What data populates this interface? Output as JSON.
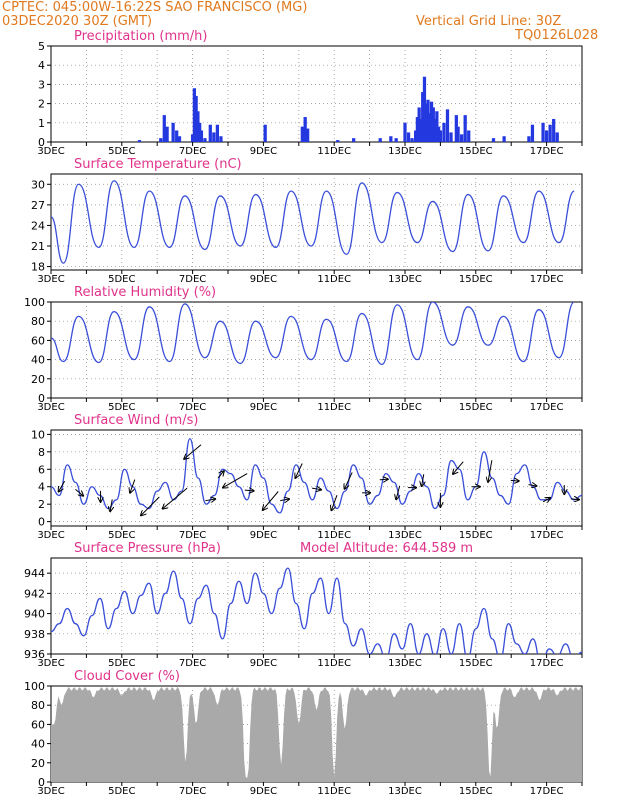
{
  "header": {
    "line1": "CPTEC:   045:00W-16:22S   SAO FRANCISCO (MG)",
    "line2": "03DEC2020 30Z (GMT)",
    "right1": "Vertical Grid Line: 30Z",
    "right2": "TQ0126L028",
    "altitude": "Model Altitude: 644.589 m"
  },
  "colors": {
    "header": "#e07a1f",
    "title": "#e0338a",
    "line": "#3a4fd8",
    "bar": "#2438e0",
    "cloud": "#a9a9a9"
  },
  "chart_data": [
    {
      "type": "bar",
      "title": "Precipitation (mm/h)",
      "x_start_day": 3,
      "x_end_day": 18,
      "xticks": [
        "3DEC",
        "5DEC",
        "7DEC",
        "9DEC",
        "11DEC",
        "13DEC",
        "15DEC",
        "17DEC"
      ],
      "yticks": [
        0,
        1,
        2,
        3,
        4,
        5
      ],
      "ylim": [
        0,
        5
      ],
      "bars": [
        {
          "d": 5.5,
          "v": 0.1
        },
        {
          "d": 6.1,
          "v": 0.2
        },
        {
          "d": 6.2,
          "v": 1.4
        },
        {
          "d": 6.28,
          "v": 0.8
        },
        {
          "d": 6.45,
          "v": 1.0
        },
        {
          "d": 6.55,
          "v": 0.6
        },
        {
          "d": 6.63,
          "v": 0.3
        },
        {
          "d": 7.0,
          "v": 0.4
        },
        {
          "d": 7.05,
          "v": 2.8
        },
        {
          "d": 7.1,
          "v": 2.4
        },
        {
          "d": 7.15,
          "v": 1.6
        },
        {
          "d": 7.2,
          "v": 1.0
        },
        {
          "d": 7.25,
          "v": 0.6
        },
        {
          "d": 7.35,
          "v": 0.2
        },
        {
          "d": 7.5,
          "v": 0.9
        },
        {
          "d": 7.6,
          "v": 0.5
        },
        {
          "d": 7.7,
          "v": 0.9
        },
        {
          "d": 7.8,
          "v": 0.3
        },
        {
          "d": 9.05,
          "v": 0.9
        },
        {
          "d": 10.1,
          "v": 0.8
        },
        {
          "d": 10.18,
          "v": 1.3
        },
        {
          "d": 10.25,
          "v": 0.7
        },
        {
          "d": 11.1,
          "v": 0.1
        },
        {
          "d": 11.55,
          "v": 0.2
        },
        {
          "d": 12.3,
          "v": 0.2
        },
        {
          "d": 12.6,
          "v": 0.3
        },
        {
          "d": 12.75,
          "v": 0.2
        },
        {
          "d": 13.0,
          "v": 1.0
        },
        {
          "d": 13.1,
          "v": 0.5
        },
        {
          "d": 13.2,
          "v": 0.2
        },
        {
          "d": 13.3,
          "v": 0.6
        },
        {
          "d": 13.35,
          "v": 1.3
        },
        {
          "d": 13.4,
          "v": 1.8
        },
        {
          "d": 13.45,
          "v": 1.2
        },
        {
          "d": 13.5,
          "v": 2.6
        },
        {
          "d": 13.55,
          "v": 3.4
        },
        {
          "d": 13.6,
          "v": 2.0
        },
        {
          "d": 13.65,
          "v": 2.2
        },
        {
          "d": 13.7,
          "v": 1.5
        },
        {
          "d": 13.75,
          "v": 2.1
        },
        {
          "d": 13.8,
          "v": 1.8
        },
        {
          "d": 13.85,
          "v": 1.2
        },
        {
          "d": 13.9,
          "v": 1.6
        },
        {
          "d": 13.95,
          "v": 0.8
        },
        {
          "d": 14.0,
          "v": 0.6
        },
        {
          "d": 14.1,
          "v": 1.0
        },
        {
          "d": 14.2,
          "v": 1.7
        },
        {
          "d": 14.3,
          "v": 0.5
        },
        {
          "d": 14.45,
          "v": 1.4
        },
        {
          "d": 14.5,
          "v": 0.8
        },
        {
          "d": 14.6,
          "v": 0.4
        },
        {
          "d": 14.7,
          "v": 1.4
        },
        {
          "d": 14.8,
          "v": 0.6
        },
        {
          "d": 15.5,
          "v": 0.2
        },
        {
          "d": 15.8,
          "v": 0.3
        },
        {
          "d": 16.5,
          "v": 0.3
        },
        {
          "d": 16.6,
          "v": 0.9
        },
        {
          "d": 16.9,
          "v": 1.0
        },
        {
          "d": 17.0,
          "v": 0.6
        },
        {
          "d": 17.1,
          "v": 0.9
        },
        {
          "d": 17.2,
          "v": 1.2
        },
        {
          "d": 17.3,
          "v": 0.5
        }
      ]
    },
    {
      "type": "line",
      "title": "Surface Temperature (nC)",
      "x_start_day": 3,
      "x_end_day": 18,
      "xticks": [
        "3DEC",
        "5DEC",
        "7DEC",
        "9DEC",
        "11DEC",
        "13DEC",
        "15DEC",
        "17DEC"
      ],
      "yticks": [
        18,
        21,
        24,
        27,
        30
      ],
      "ylim": [
        17.5,
        31.5
      ],
      "mins": [
        18.5,
        20.8,
        20.8,
        20.8,
        20.5,
        21.0,
        20.8,
        21.0,
        19.8,
        21.5,
        21.5,
        20.2,
        20.3,
        21.5,
        21.5
      ],
      "maxs": [
        30.0,
        30.5,
        29.0,
        28.3,
        28.3,
        28.5,
        29.0,
        29.0,
        30.2,
        28.8,
        27.5,
        28.5,
        28.3,
        29.0,
        29.0
      ]
    },
    {
      "type": "line",
      "title": "Relative Humidity (%)",
      "x_start_day": 3,
      "x_end_day": 18,
      "xticks": [
        "3DEC",
        "5DEC",
        "7DEC",
        "9DEC",
        "11DEC",
        "13DEC",
        "15DEC",
        "17DEC"
      ],
      "yticks": [
        0,
        20,
        40,
        60,
        80,
        100
      ],
      "ylim": [
        0,
        100
      ],
      "mins": [
        38,
        37,
        40,
        38,
        42,
        36,
        42,
        40,
        38,
        35,
        40,
        55,
        55,
        38,
        42
      ],
      "maxs": [
        85,
        90,
        95,
        98,
        80,
        80,
        85,
        82,
        88,
        97,
        100,
        95,
        85,
        92,
        100
      ]
    },
    {
      "type": "line",
      "title": "Surface Wind (m/s)",
      "x_start_day": 3,
      "x_end_day": 18,
      "xticks": [
        "3DEC",
        "5DEC",
        "7DEC",
        "9DEC",
        "11DEC",
        "13DEC",
        "15DEC",
        "17DEC"
      ],
      "yticks": [
        0,
        2,
        4,
        6,
        8,
        10
      ],
      "ylim": [
        -0.5,
        10.5
      ],
      "values": [
        4.0,
        3.0,
        6.5,
        4.5,
        2.0,
        4.0,
        3.0,
        1.5,
        2.5,
        6.0,
        4.0,
        2.0,
        1.5,
        3.5,
        4.5,
        2.5,
        3.5,
        9.5,
        5.0,
        2.0,
        3.0,
        6.0,
        5.5,
        4.0,
        2.5,
        6.5,
        5.0,
        2.0,
        1.0,
        3.5,
        6.5,
        4.5,
        2.5,
        5.0,
        3.5,
        1.5,
        3.5,
        6.5,
        5.0,
        2.0,
        3.0,
        5.5,
        4.5,
        2.0,
        3.5,
        5.5,
        4.0,
        1.5,
        3.0,
        7.0,
        6.0,
        2.5,
        4.0,
        8.0,
        5.0,
        3.0,
        2.0,
        5.5,
        6.5,
        4.0,
        2.5,
        2.5,
        4.5,
        3.5,
        2.5,
        3.0
      ],
      "arrows": [
        {
          "d": 3.3,
          "dir": 210,
          "len": 12
        },
        {
          "d": 3.8,
          "dir": 130,
          "len": 10
        },
        {
          "d": 4.4,
          "dir": 180,
          "len": 11
        },
        {
          "d": 4.7,
          "dir": 190,
          "len": 12
        },
        {
          "d": 5.3,
          "dir": 200,
          "len": 14
        },
        {
          "d": 5.8,
          "dir": 225,
          "len": 26
        },
        {
          "d": 6.5,
          "dir": 230,
          "len": 32
        },
        {
          "d": 7.0,
          "dir": 230,
          "len": 22
        },
        {
          "d": 7.5,
          "dir": 80,
          "len": 10
        },
        {
          "d": 7.8,
          "dir": 40,
          "len": 9
        },
        {
          "d": 8.2,
          "dir": 240,
          "len": 28
        },
        {
          "d": 8.6,
          "dir": 95,
          "len": 9
        },
        {
          "d": 9.2,
          "dir": 220,
          "len": 24
        },
        {
          "d": 9.6,
          "dir": 80,
          "len": 9
        },
        {
          "d": 10.0,
          "dir": 205,
          "len": 16
        },
        {
          "d": 10.5,
          "dir": 100,
          "len": 9
        },
        {
          "d": 11.0,
          "dir": 200,
          "len": 16
        },
        {
          "d": 11.4,
          "dir": 205,
          "len": 18
        },
        {
          "d": 11.9,
          "dir": 90,
          "len": 8
        },
        {
          "d": 12.4,
          "dir": 85,
          "len": 8
        },
        {
          "d": 12.8,
          "dir": 195,
          "len": 14
        },
        {
          "d": 13.2,
          "dir": 90,
          "len": 8
        },
        {
          "d": 13.5,
          "dir": 190,
          "len": 12
        },
        {
          "d": 14.0,
          "dir": 180,
          "len": 14
        },
        {
          "d": 14.5,
          "dir": 220,
          "len": 16
        },
        {
          "d": 15.0,
          "dir": 90,
          "len": 8
        },
        {
          "d": 15.4,
          "dir": 190,
          "len": 22
        },
        {
          "d": 16.1,
          "dir": 95,
          "len": 8
        },
        {
          "d": 16.6,
          "dir": 100,
          "len": 8
        },
        {
          "d": 17.0,
          "dir": 60,
          "len": 8
        },
        {
          "d": 17.5,
          "dir": 180,
          "len": 9
        },
        {
          "d": 17.8,
          "dir": 95,
          "len": 8
        }
      ]
    },
    {
      "type": "line",
      "title": "Surface Pressure (hPa)",
      "x_start_day": 3,
      "x_end_day": 18,
      "xticks": [
        "3DEC",
        "5DEC",
        "7DEC",
        "9DEC",
        "11DEC",
        "13DEC",
        "15DEC",
        "17DEC"
      ],
      "yticks": [
        936,
        938,
        940,
        942,
        944
      ],
      "ylim": [
        936,
        945.5
      ],
      "values": [
        938.2,
        939.0,
        940.5,
        939.0,
        937.8,
        939.8,
        941.5,
        938.5,
        940.5,
        942.2,
        940.0,
        941.8,
        943.0,
        940.0,
        942.0,
        944.2,
        941.5,
        939.0,
        941.5,
        942.8,
        940.0,
        937.5,
        941.0,
        943.2,
        941.0,
        944.0,
        942.0,
        940.0,
        942.5,
        944.5,
        941.0,
        938.5,
        942.0,
        943.5,
        940.0,
        943.5,
        939.0,
        936.8,
        938.5,
        936.0,
        937.0,
        935.5,
        938.0,
        936.5,
        939.0,
        936.0,
        938.0,
        935.8,
        938.5,
        936.0,
        939.0,
        935.5,
        938.5,
        940.5,
        937.5,
        935.5,
        939.0,
        937.0,
        936.0,
        937.5,
        935.0,
        936.5,
        935.8,
        937.0,
        935.5,
        936.2
      ],
      "xlim_note": ""
    },
    {
      "type": "bar",
      "title": "Cloud Cover (%)",
      "x_start_day": 3,
      "x_end_day": 18,
      "xticks": [
        "3DEC",
        "5DEC",
        "7DEC",
        "9DEC",
        "11DEC",
        "13DEC",
        "15DEC",
        "17DEC"
      ],
      "yticks": [
        0,
        20,
        40,
        60,
        80,
        100
      ],
      "ylim": [
        0,
        100
      ],
      "dips": [
        {
          "d": 3.1,
          "v": 62
        },
        {
          "d": 3.3,
          "v": 80
        },
        {
          "d": 4.2,
          "v": 88
        },
        {
          "d": 5.0,
          "v": 90
        },
        {
          "d": 5.9,
          "v": 85
        },
        {
          "d": 6.8,
          "v": 20
        },
        {
          "d": 7.1,
          "v": 60
        },
        {
          "d": 7.7,
          "v": 80
        },
        {
          "d": 8.5,
          "v": 8
        },
        {
          "d": 8.55,
          "v": 4
        },
        {
          "d": 9.5,
          "v": 18
        },
        {
          "d": 10.0,
          "v": 60
        },
        {
          "d": 10.5,
          "v": 75
        },
        {
          "d": 11.0,
          "v": 5
        },
        {
          "d": 11.3,
          "v": 55
        },
        {
          "d": 11.9,
          "v": 90
        },
        {
          "d": 12.7,
          "v": 88
        },
        {
          "d": 13.9,
          "v": 92
        },
        {
          "d": 15.4,
          "v": 2
        },
        {
          "d": 15.6,
          "v": 55
        },
        {
          "d": 16.1,
          "v": 88
        },
        {
          "d": 16.8,
          "v": 85
        },
        {
          "d": 17.3,
          "v": 90
        }
      ]
    }
  ]
}
